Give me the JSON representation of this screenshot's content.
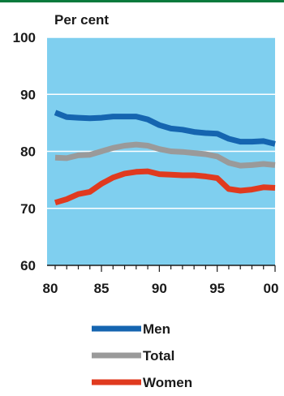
{
  "accent_color": "#0a7a3d",
  "chart_data": {
    "type": "line",
    "unit_label": "Per cent",
    "title": "",
    "xlabel": "",
    "ylabel": "",
    "plot_background": "#7fcfef",
    "grid": true,
    "legend_position": "bottom",
    "xlim": [
      1980.3,
      2000
    ],
    "ylim": [
      60,
      100
    ],
    "x_ticks": [
      1980,
      1985,
      1990,
      1995,
      2000
    ],
    "x_tick_labels": [
      "80",
      "85",
      "90",
      "95",
      "00"
    ],
    "y_ticks": [
      60,
      70,
      80,
      90,
      100
    ],
    "y_tick_labels": [
      "60",
      "70",
      "80",
      "90",
      "100"
    ],
    "x": [
      1981,
      1982,
      1983,
      1984,
      1985,
      1986,
      1987,
      1988,
      1989,
      1990,
      1991,
      1992,
      1993,
      1994,
      1995,
      1996,
      1997,
      1998,
      1999,
      2000
    ],
    "series": [
      {
        "name": "Men",
        "color": "#1565b0",
        "values": [
          86.8,
          86.0,
          85.9,
          85.8,
          85.9,
          86.1,
          86.1,
          86.1,
          85.6,
          84.6,
          84.0,
          83.8,
          83.4,
          83.2,
          83.1,
          82.2,
          81.7,
          81.7,
          81.8,
          81.3
        ]
      },
      {
        "name": "Total",
        "color": "#9a9a9a",
        "values": [
          78.9,
          78.8,
          79.3,
          79.4,
          80.0,
          80.6,
          81.0,
          81.2,
          81.0,
          80.4,
          80.0,
          79.9,
          79.7,
          79.5,
          79.1,
          78.0,
          77.5,
          77.6,
          77.8,
          77.6
        ]
      },
      {
        "name": "Women",
        "color": "#e03a1f",
        "values": [
          71.0,
          71.6,
          72.5,
          72.9,
          74.3,
          75.4,
          76.1,
          76.4,
          76.5,
          76.0,
          75.9,
          75.8,
          75.8,
          75.6,
          75.3,
          73.4,
          73.1,
          73.3,
          73.7,
          73.6
        ]
      }
    ]
  }
}
